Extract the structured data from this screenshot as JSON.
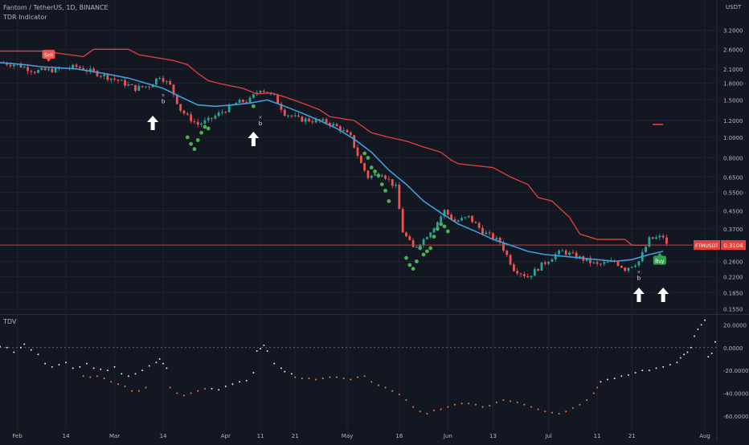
{
  "header": {
    "symbol_line": "Fantom / TetherUS, 1D, BINANCE",
    "indicator": "TDR Indicator"
  },
  "lower_pane": {
    "name": "TDV"
  },
  "colors": {
    "background": "#131722",
    "up_candle": "#26a69a",
    "down_candle": "#ef5350",
    "ma_line": "#3d9fe0",
    "stop_line": "#e2423f",
    "dots": "#4caf50",
    "tdv_white": "#e0e3eb",
    "tdv_orange": "#f57c3c",
    "price_line": "#e2423f",
    "arrows": "#ffffff"
  },
  "chart_data": [
    {
      "type": "candlestick",
      "name": "price-chart",
      "title": "Fantom / TetherUS, 1D, BINANCE",
      "y_scale": "log",
      "y_unit": "USDT",
      "yticks": [
        "3.2000",
        "2.6000",
        "2.1000",
        "1.8000",
        "1.5000",
        "1.2000",
        "1.0000",
        "0.8000",
        "0.6500",
        "0.5500",
        "0.4500",
        "0.3700",
        "0.2600",
        "0.2200",
        "0.1850",
        "0.1550"
      ],
      "ytick_values": [
        3.2,
        2.6,
        2.1,
        1.8,
        1.5,
        1.2,
        1.0,
        0.8,
        0.65,
        0.55,
        0.45,
        0.37,
        0.26,
        0.22,
        0.185,
        0.155
      ],
      "ylim": [
        0.148,
        3.6
      ],
      "x_labels": [
        "Feb",
        "14",
        "Mar",
        "14",
        "Apr",
        "11",
        "21",
        "May",
        "16",
        "Jun",
        "13",
        "Jul",
        "11",
        "21",
        "Aug"
      ],
      "x_label_days": [
        3,
        17,
        31,
        45,
        63,
        73,
        83,
        98,
        113,
        127,
        140,
        156,
        170,
        180,
        201
      ],
      "xlim": [
        -2,
        204
      ],
      "current_price": {
        "label": "FTMUSDT",
        "value": "0.3104",
        "num": 0.3104
      },
      "signals": [
        {
          "label": "Sell",
          "day": 12,
          "price": 2.45
        },
        {
          "label": "Buy",
          "day": 188,
          "price": 0.262
        }
      ],
      "signal_letters": [
        {
          "label": "b",
          "day": 45,
          "price": 1.55
        },
        {
          "label": "b",
          "day": 73,
          "price": 1.22
        },
        {
          "label": "b",
          "day": 182,
          "price": 0.228
        }
      ],
      "up_arrows": [
        42,
        71,
        182,
        189
      ],
      "stop_line": [
        [
          -2,
          2.55
        ],
        [
          10,
          2.55
        ],
        [
          18,
          2.45
        ],
        [
          22,
          2.4
        ],
        [
          25,
          2.6
        ],
        [
          35,
          2.6
        ],
        [
          38,
          2.45
        ],
        [
          48,
          2.3
        ],
        [
          52,
          2.2
        ],
        [
          55,
          2.0
        ],
        [
          58,
          1.85
        ],
        [
          62,
          1.78
        ],
        [
          68,
          1.7
        ],
        [
          72,
          1.6
        ],
        [
          76,
          1.62
        ],
        [
          80,
          1.55
        ],
        [
          85,
          1.45
        ],
        [
          90,
          1.35
        ],
        [
          93,
          1.25
        ],
        [
          100,
          1.2
        ],
        [
          105,
          1.05
        ],
        [
          110,
          1.0
        ],
        [
          115,
          0.96
        ],
        [
          120,
          0.9
        ],
        [
          125,
          0.85
        ],
        [
          128,
          0.78
        ],
        [
          130,
          0.75
        ],
        [
          140,
          0.72
        ],
        [
          145,
          0.65
        ],
        [
          150,
          0.6
        ],
        [
          153,
          0.52
        ],
        [
          157,
          0.5
        ],
        [
          162,
          0.42
        ],
        [
          165,
          0.35
        ],
        [
          170,
          0.33
        ],
        [
          178,
          0.33
        ],
        [
          180,
          0.31
        ],
        [
          185,
          0.31
        ]
      ],
      "stop_segment": {
        "start": 186,
        "end": 189,
        "price": 1.15
      },
      "ma_line": [
        [
          -2,
          2.25
        ],
        [
          5,
          2.2
        ],
        [
          10,
          2.15
        ],
        [
          20,
          2.1
        ],
        [
          28,
          2.0
        ],
        [
          35,
          1.9
        ],
        [
          40,
          1.8
        ],
        [
          45,
          1.7
        ],
        [
          50,
          1.55
        ],
        [
          55,
          1.42
        ],
        [
          60,
          1.4
        ],
        [
          65,
          1.42
        ],
        [
          70,
          1.45
        ],
        [
          75,
          1.5
        ],
        [
          80,
          1.4
        ],
        [
          85,
          1.3
        ],
        [
          90,
          1.2
        ],
        [
          95,
          1.1
        ],
        [
          100,
          0.98
        ],
        [
          105,
          0.85
        ],
        [
          110,
          0.7
        ],
        [
          115,
          0.6
        ],
        [
          120,
          0.5
        ],
        [
          125,
          0.44
        ],
        [
          130,
          0.39
        ],
        [
          135,
          0.36
        ],
        [
          140,
          0.33
        ],
        [
          145,
          0.31
        ],
        [
          150,
          0.29
        ],
        [
          155,
          0.28
        ],
        [
          160,
          0.275
        ],
        [
          165,
          0.27
        ],
        [
          170,
          0.265
        ],
        [
          175,
          0.26
        ],
        [
          180,
          0.265
        ],
        [
          185,
          0.28
        ],
        [
          189,
          0.29
        ]
      ],
      "close_path": [
        [
          -2,
          2.25
        ],
        [
          3,
          2.2
        ],
        [
          8,
          2.05
        ],
        [
          14,
          2.08
        ],
        [
          20,
          2.15
        ],
        [
          26,
          2.0
        ],
        [
          32,
          1.85
        ],
        [
          37,
          1.7
        ],
        [
          41,
          1.75
        ],
        [
          44,
          1.95
        ],
        [
          47,
          1.75
        ],
        [
          50,
          1.35
        ],
        [
          52,
          1.25
        ],
        [
          55,
          1.15
        ],
        [
          58,
          1.2
        ],
        [
          62,
          1.32
        ],
        [
          66,
          1.45
        ],
        [
          70,
          1.5
        ],
        [
          73,
          1.7
        ],
        [
          77,
          1.55
        ],
        [
          80,
          1.3
        ],
        [
          84,
          1.22
        ],
        [
          88,
          1.2
        ],
        [
          92,
          1.18
        ],
        [
          96,
          1.1
        ],
        [
          99,
          1.0
        ],
        [
          102,
          0.75
        ],
        [
          104,
          0.65
        ],
        [
          108,
          0.68
        ],
        [
          112,
          0.58
        ],
        [
          114,
          0.36
        ],
        [
          117,
          0.3
        ],
        [
          120,
          0.33
        ],
        [
          124,
          0.4
        ],
        [
          126,
          0.45
        ],
        [
          129,
          0.4
        ],
        [
          133,
          0.42
        ],
        [
          137,
          0.36
        ],
        [
          142,
          0.32
        ],
        [
          146,
          0.24
        ],
        [
          150,
          0.22
        ],
        [
          154,
          0.25
        ],
        [
          158,
          0.28
        ],
        [
          160,
          0.29
        ],
        [
          165,
          0.27
        ],
        [
          170,
          0.25
        ],
        [
          175,
          0.26
        ],
        [
          178,
          0.24
        ],
        [
          182,
          0.26
        ],
        [
          185,
          0.33
        ],
        [
          189,
          0.34
        ],
        [
          190,
          0.31
        ]
      ],
      "dots": [
        [
          52,
          1.0
        ],
        [
          53,
          0.93
        ],
        [
          54,
          0.88
        ],
        [
          55,
          0.97
        ],
        [
          56,
          1.05
        ],
        [
          57,
          1.12
        ],
        [
          58,
          1.1
        ],
        [
          71,
          1.4
        ],
        [
          103,
          0.84
        ],
        [
          104,
          0.8
        ],
        [
          105,
          0.72
        ],
        [
          106,
          0.69
        ],
        [
          107,
          0.66
        ],
        [
          108,
          0.6
        ],
        [
          109,
          0.56
        ],
        [
          110,
          0.5
        ],
        [
          115,
          0.27
        ],
        [
          116,
          0.25
        ],
        [
          117,
          0.24
        ],
        [
          118,
          0.26
        ],
        [
          119,
          0.3
        ],
        [
          120,
          0.28
        ],
        [
          121,
          0.29
        ],
        [
          122,
          0.3
        ],
        [
          123,
          0.34
        ],
        [
          124,
          0.37
        ],
        [
          125,
          0.39
        ],
        [
          126,
          0.38
        ],
        [
          127,
          0.36
        ]
      ]
    },
    {
      "type": "scatter",
      "name": "TDV",
      "title": "TDV",
      "yticks": [
        "20.0000",
        "0.0000",
        "-20.0000",
        "-40.0000",
        "-60.0000"
      ],
      "ytick_values": [
        20,
        0,
        -20,
        -40,
        -60
      ],
      "ylim": [
        -72,
        28
      ],
      "zero_line": 0,
      "white_points": [
        [
          -2,
          1
        ],
        [
          0,
          0
        ],
        [
          2,
          -4
        ],
        [
          4,
          0
        ],
        [
          5,
          3
        ],
        [
          7,
          -2
        ],
        [
          9,
          -6
        ],
        [
          11,
          -14
        ],
        [
          13,
          -17
        ],
        [
          15,
          -15
        ],
        [
          17,
          -13
        ],
        [
          19,
          -18
        ],
        [
          21,
          -17
        ],
        [
          23,
          -14
        ],
        [
          25,
          -18
        ],
        [
          27,
          -19
        ],
        [
          29,
          -20
        ],
        [
          31,
          -17
        ],
        [
          33,
          -23
        ],
        [
          35,
          -25
        ],
        [
          37,
          -23
        ],
        [
          39,
          -20
        ],
        [
          41,
          -16
        ],
        [
          43,
          -13
        ],
        [
          44,
          -10
        ],
        [
          45,
          -14
        ],
        [
          46,
          -18
        ],
        [
          59,
          -36
        ],
        [
          61,
          -37
        ],
        [
          63,
          -34
        ],
        [
          65,
          -32
        ],
        [
          67,
          -30
        ],
        [
          69,
          -29
        ],
        [
          71,
          -22
        ],
        [
          72,
          -3
        ],
        [
          73,
          -1
        ],
        [
          74,
          2
        ],
        [
          75,
          -3
        ],
        [
          77,
          -14
        ],
        [
          79,
          -18
        ],
        [
          80,
          -21
        ],
        [
          82,
          -23
        ],
        [
          171,
          -30
        ],
        [
          173,
          -28
        ],
        [
          175,
          -27
        ],
        [
          177,
          -25
        ],
        [
          179,
          -24
        ],
        [
          181,
          -22
        ],
        [
          183,
          -20
        ],
        [
          185,
          -20
        ],
        [
          187,
          -18
        ],
        [
          189,
          -17
        ],
        [
          191,
          -15
        ],
        [
          193,
          -13
        ],
        [
          194,
          -9
        ],
        [
          195,
          -6
        ],
        [
          196,
          -4
        ],
        [
          197,
          0
        ],
        [
          198,
          10
        ],
        [
          199,
          16
        ],
        [
          200,
          20
        ],
        [
          201,
          24
        ],
        [
          202,
          -8
        ],
        [
          203,
          -5
        ],
        [
          204,
          5
        ]
      ],
      "orange_points": [
        [
          22,
          -25
        ],
        [
          24,
          -26
        ],
        [
          26,
          -25
        ],
        [
          28,
          -27
        ],
        [
          30,
          -30
        ],
        [
          32,
          -32
        ],
        [
          34,
          -34
        ],
        [
          36,
          -38
        ],
        [
          38,
          -38
        ],
        [
          40,
          -35
        ],
        [
          47,
          -35
        ],
        [
          49,
          -40
        ],
        [
          51,
          -42
        ],
        [
          53,
          -40
        ],
        [
          55,
          -38
        ],
        [
          57,
          -36
        ],
        [
          83,
          -26
        ],
        [
          85,
          -27
        ],
        [
          87,
          -27
        ],
        [
          89,
          -28
        ],
        [
          91,
          -27
        ],
        [
          93,
          -26
        ],
        [
          95,
          -26
        ],
        [
          97,
          -27
        ],
        [
          99,
          -28
        ],
        [
          101,
          -26
        ],
        [
          103,
          -25
        ],
        [
          105,
          -30
        ],
        [
          107,
          -33
        ],
        [
          109,
          -35
        ],
        [
          111,
          -38
        ],
        [
          113,
          -41
        ],
        [
          115,
          -46
        ],
        [
          117,
          -52
        ],
        [
          119,
          -56
        ],
        [
          121,
          -58
        ],
        [
          123,
          -55
        ],
        [
          125,
          -54
        ],
        [
          127,
          -52
        ],
        [
          129,
          -50
        ],
        [
          131,
          -49
        ],
        [
          133,
          -49
        ],
        [
          135,
          -50
        ],
        [
          137,
          -52
        ],
        [
          139,
          -51
        ],
        [
          141,
          -48
        ],
        [
          143,
          -46
        ],
        [
          145,
          -47
        ],
        [
          147,
          -48
        ],
        [
          149,
          -50
        ],
        [
          151,
          -52
        ],
        [
          153,
          -54
        ],
        [
          155,
          -56
        ],
        [
          157,
          -57
        ],
        [
          159,
          -58
        ],
        [
          161,
          -56
        ],
        [
          163,
          -53
        ],
        [
          165,
          -50
        ],
        [
          167,
          -46
        ],
        [
          169,
          -40
        ],
        [
          170,
          -35
        ]
      ]
    }
  ]
}
